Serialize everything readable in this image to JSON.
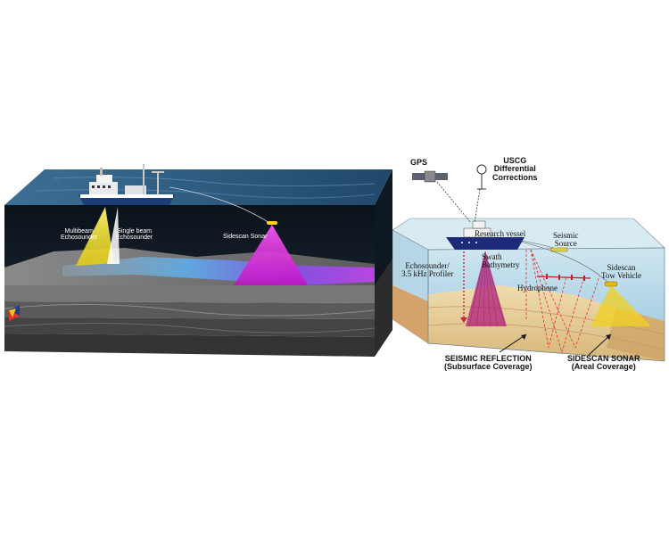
{
  "left_diagram": {
    "labels": {
      "multibeam": "Multibeam\nEchosounder",
      "single_beam": "Single beam\nEchosounder",
      "sidescan": "Sidescan Sonar"
    }
  },
  "right_diagram": {
    "labels": {
      "gps": "GPS",
      "uscg": "USCG\nDifferential\nCorrections",
      "research_vessel": "Research vessel",
      "seismic_source": "Seismic\nSource",
      "swath_bathymetry": "Swath\nBathymetry",
      "echosounder_profiler": "Echosounder/\n3.5 kHz Profiler",
      "hydrophone": "Hydrophone",
      "sidescan_tow_vehicle": "Sidescan\nTow Vehicle",
      "seismic_reflection": "SEISMIC REFLECTION\n(Subsurface Coverage)",
      "sidescan_sonar": "SIDESCAN SONAR\n(Areal Coverage)"
    }
  },
  "colors": {
    "ocean_dark": "#0d1a26",
    "sea_surface": "#2d5f86",
    "seafloor": "#6b6b6b",
    "multibeam_beam": "#f2e21a",
    "single_beam": "#ffffff",
    "sidescan_beam": "#e020e0",
    "swath_beam": "#b01e7a",
    "seismic_ray": "#e03030",
    "sediment": "#e8d6b0"
  }
}
